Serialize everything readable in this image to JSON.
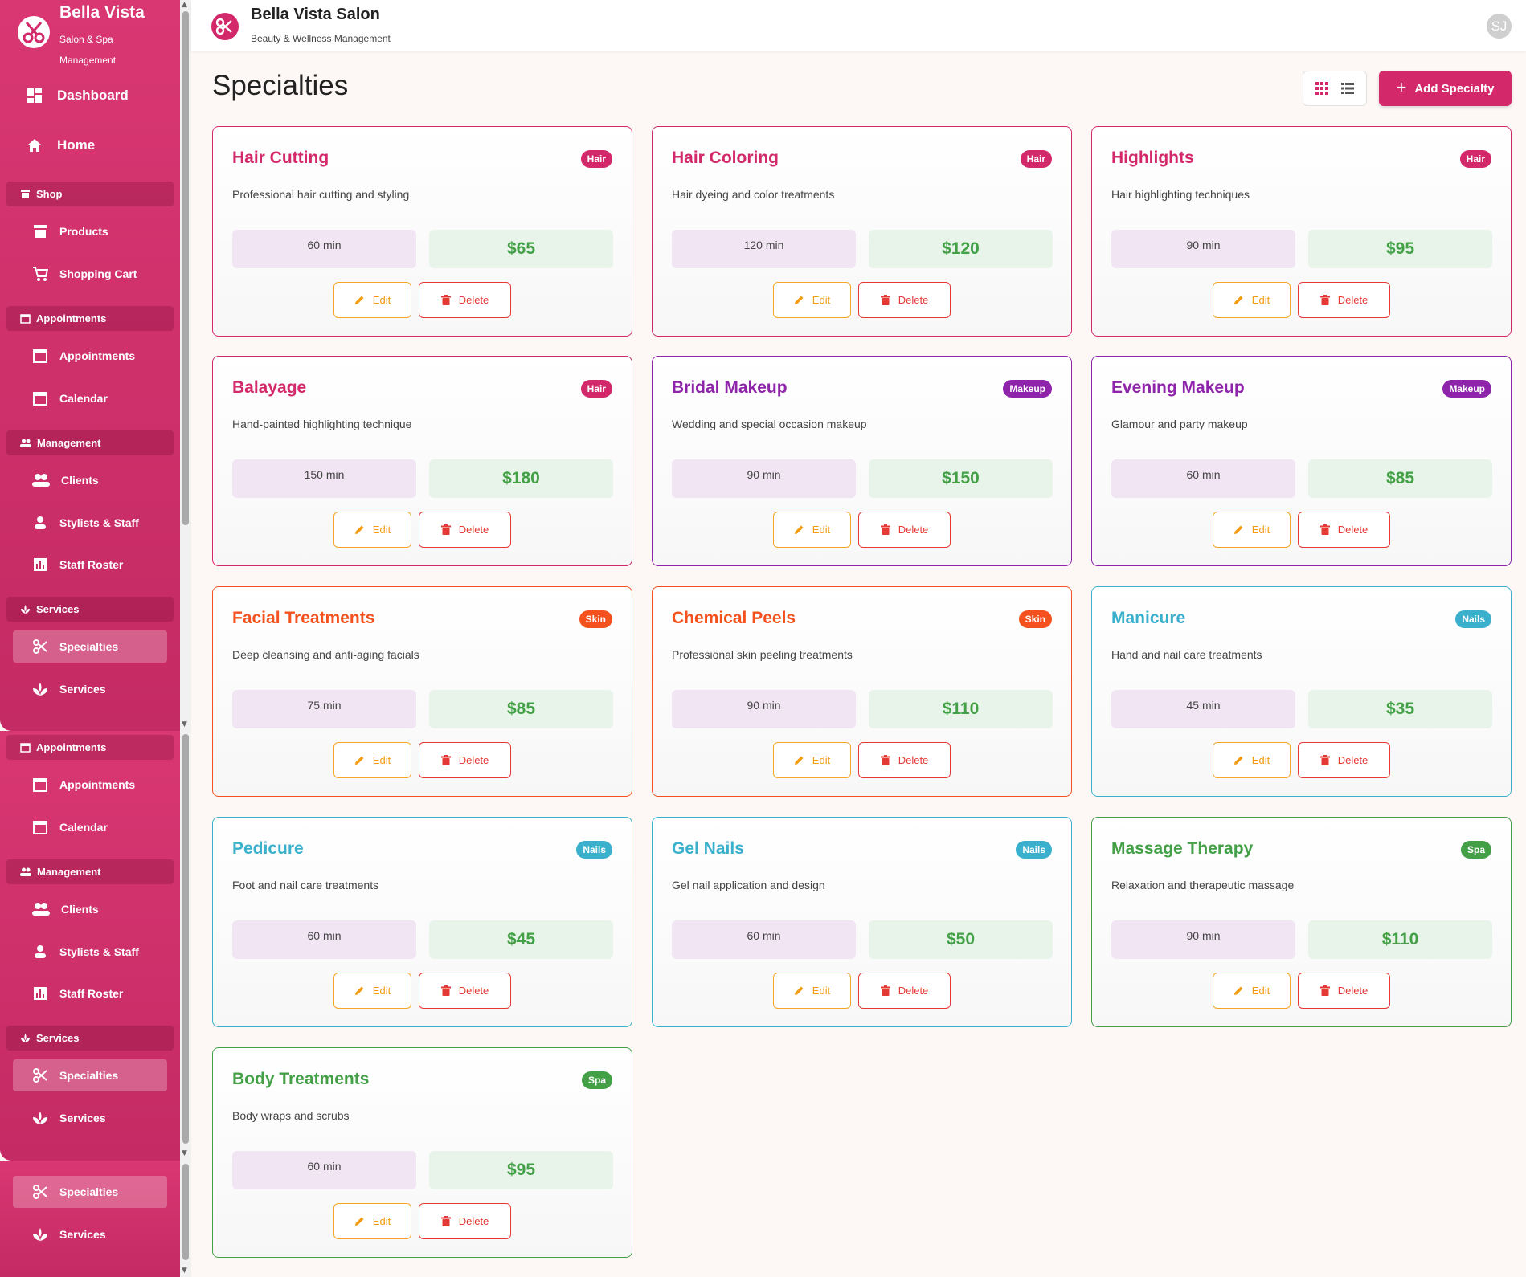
{
  "brand": {
    "title": "Bella Vista",
    "subtitle": "Salon & Spa Management"
  },
  "header": {
    "title": "Bella Vista Salon",
    "subtitle": "Beauty & Wellness Management",
    "avatar_initials": "SJ"
  },
  "nav": {
    "dashboard": "Dashboard",
    "home": "Home",
    "shop": "Shop",
    "products": "Products",
    "shopping_cart": "Shopping Cart",
    "appointments_section": "Appointments",
    "appointments": "Appointments",
    "calendar": "Calendar",
    "management": "Management",
    "clients": "Clients",
    "stylists": "Stylists & Staff",
    "staff_roster": "Staff Roster",
    "services_section": "Services",
    "specialties": "Specialties",
    "services": "Services"
  },
  "page": {
    "title": "Specialties",
    "add_button": "Add Specialty"
  },
  "actions": {
    "edit": "Edit",
    "delete": "Delete"
  },
  "colors": {
    "Hair": "#d3286a",
    "Makeup": "#8e24aa",
    "Skin": "#f4511e",
    "Nails": "#3bb0cc",
    "Spa": "#43a047",
    "accent": "#d3286a"
  },
  "specialties": [
    {
      "name": "Hair Cutting",
      "category": "Hair",
      "description": "Professional hair cutting and styling",
      "duration": "60 min",
      "price": "$65"
    },
    {
      "name": "Hair Coloring",
      "category": "Hair",
      "description": "Hair dyeing and color treatments",
      "duration": "120 min",
      "price": "$120"
    },
    {
      "name": "Highlights",
      "category": "Hair",
      "description": "Hair highlighting techniques",
      "duration": "90 min",
      "price": "$95"
    },
    {
      "name": "Balayage",
      "category": "Hair",
      "description": "Hand-painted highlighting technique",
      "duration": "150 min",
      "price": "$180"
    },
    {
      "name": "Bridal Makeup",
      "category": "Makeup",
      "description": "Wedding and special occasion makeup",
      "duration": "90 min",
      "price": "$150"
    },
    {
      "name": "Evening Makeup",
      "category": "Makeup",
      "description": "Glamour and party makeup",
      "duration": "60 min",
      "price": "$85"
    },
    {
      "name": "Facial Treatments",
      "category": "Skin",
      "description": "Deep cleansing and anti-aging facials",
      "duration": "75 min",
      "price": "$85"
    },
    {
      "name": "Chemical Peels",
      "category": "Skin",
      "description": "Professional skin peeling treatments",
      "duration": "90 min",
      "price": "$110"
    },
    {
      "name": "Manicure",
      "category": "Nails",
      "description": "Hand and nail care treatments",
      "duration": "45 min",
      "price": "$35"
    },
    {
      "name": "Pedicure",
      "category": "Nails",
      "description": "Foot and nail care treatments",
      "duration": "60 min",
      "price": "$45"
    },
    {
      "name": "Gel Nails",
      "category": "Nails",
      "description": "Gel nail application and design",
      "duration": "60 min",
      "price": "$50"
    },
    {
      "name": "Massage Therapy",
      "category": "Spa",
      "description": "Relaxation and therapeutic massage",
      "duration": "90 min",
      "price": "$110"
    },
    {
      "name": "Body Treatments",
      "category": "Spa",
      "description": "Body wraps and scrubs",
      "duration": "60 min",
      "price": "$95"
    }
  ]
}
